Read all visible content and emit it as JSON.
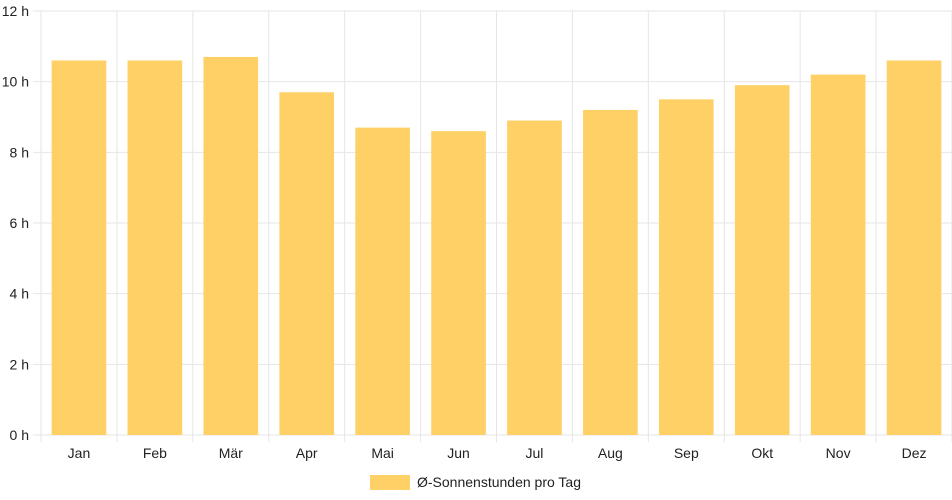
{
  "chart_data": {
    "type": "bar",
    "categories": [
      "Jan",
      "Feb",
      "Mär",
      "Apr",
      "Mai",
      "Jun",
      "Jul",
      "Aug",
      "Sep",
      "Okt",
      "Nov",
      "Dez"
    ],
    "series": [
      {
        "name": "Ø-Sonnenstunden pro Tag",
        "values": [
          10.6,
          10.6,
          10.7,
          9.7,
          8.7,
          8.6,
          8.9,
          9.2,
          9.5,
          9.9,
          10.2,
          10.6
        ],
        "color": "#fed066"
      }
    ],
    "ylim": [
      0,
      12
    ],
    "yticks": [
      0,
      2,
      4,
      6,
      8,
      10,
      12
    ],
    "ytick_labels": [
      "0 h",
      "2 h",
      "4 h",
      "6 h",
      "8 h",
      "10 h",
      "12 h"
    ],
    "grid": true,
    "grid_color": "#e6e6e6",
    "legend_position": "bottom"
  }
}
